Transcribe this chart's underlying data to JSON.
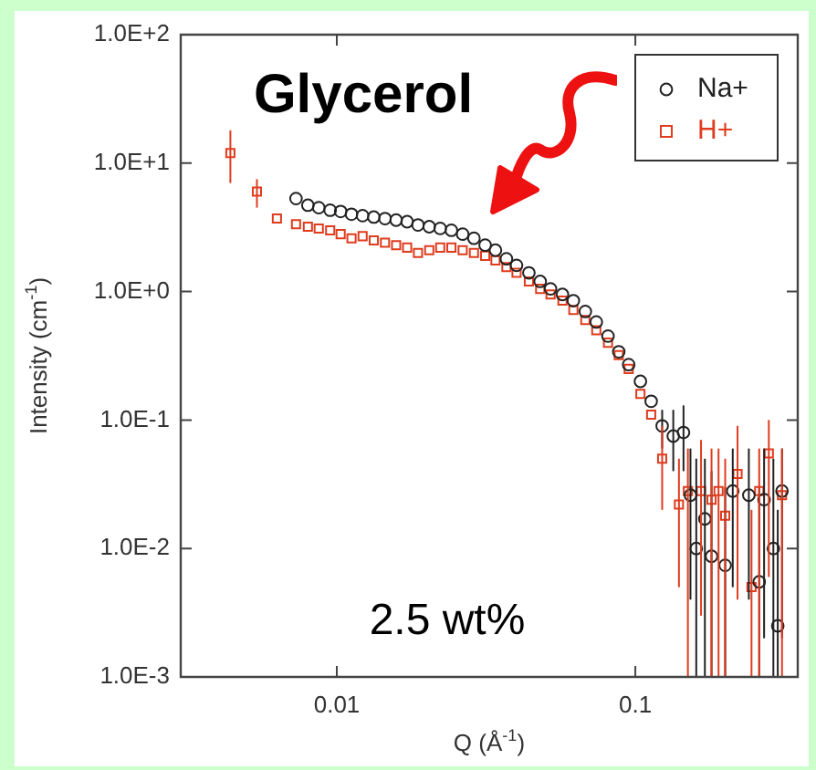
{
  "chart_data": {
    "type": "scatter",
    "xlabel": "Q (Å$^{-1}$)",
    "ylabel": "Intensity (cm$^{-1}$)",
    "annotations": [
      "Glycerol",
      "2.5 wt%"
    ],
    "log": "xy",
    "grid": false,
    "legend": "top right",
    "xlim": [
      0.003,
      0.35
    ],
    "xticks": [
      0.01,
      0.1
    ],
    "ylim": [
      0.001,
      100
    ],
    "yticks": [
      {
        "value": 0.001,
        "label": "1.0E-3"
      },
      {
        "value": 0.01,
        "label": "1.0E-2"
      },
      {
        "value": 0.1,
        "label": "1.0E-1"
      },
      {
        "value": 1,
        "label": "1.0E+0"
      },
      {
        "value": 10,
        "label": "1.0E+1"
      },
      {
        "value": 100,
        "label": "1.0E+2"
      }
    ],
    "series": [
      {
        "name": "Na+",
        "color": "#222222",
        "marker": "circle",
        "x": [
          0.0073,
          0.008,
          0.0087,
          0.0095,
          0.0103,
          0.0112,
          0.0122,
          0.0133,
          0.0145,
          0.0158,
          0.0172,
          0.0187,
          0.0204,
          0.0222,
          0.0242,
          0.0264,
          0.0288,
          0.0314,
          0.034,
          0.037,
          0.04,
          0.044,
          0.048,
          0.052,
          0.057,
          0.062,
          0.068,
          0.074,
          0.081,
          0.088,
          0.095,
          0.104,
          0.113,
          0.123,
          0.134,
          0.145,
          0.153,
          0.16,
          0.171,
          0.18,
          0.2,
          0.212,
          0.24,
          0.26,
          0.27,
          0.29,
          0.3,
          0.31
        ],
        "values": [
          5.3,
          4.7,
          4.5,
          4.3,
          4.2,
          4.0,
          3.9,
          3.8,
          3.7,
          3.6,
          3.5,
          3.3,
          3.2,
          3.1,
          3.0,
          2.8,
          2.6,
          2.3,
          2.1,
          1.8,
          1.6,
          1.4,
          1.2,
          1.05,
          0.95,
          0.85,
          0.7,
          0.58,
          0.45,
          0.34,
          0.27,
          0.2,
          0.14,
          0.09,
          0.075,
          0.08,
          0.026,
          0.01,
          0.017,
          0.0087,
          0.0074,
          0.028,
          0.026,
          0.0055,
          0.024,
          0.01,
          0.0025,
          0.028
        ],
        "errors": [
          null,
          null,
          null,
          null,
          null,
          null,
          null,
          null,
          null,
          null,
          null,
          null,
          null,
          null,
          null,
          null,
          null,
          null,
          null,
          null,
          null,
          null,
          null,
          null,
          null,
          null,
          null,
          null,
          null,
          null,
          null,
          null,
          null,
          [
            0.06,
            0.12
          ],
          [
            0.04,
            0.12
          ],
          [
            0.04,
            0.13
          ],
          [
            0.004,
            0.06
          ],
          [
            0.001,
            0.05
          ],
          [
            0.001,
            0.05
          ],
          [
            0.001,
            0.04
          ],
          [
            0.001,
            0.03
          ],
          [
            0.005,
            0.06
          ],
          [
            0.004,
            0.06
          ],
          [
            0.001,
            0.03
          ],
          [
            0.002,
            0.06
          ],
          [
            0.001,
            0.05
          ],
          [
            0.001,
            0.02
          ],
          [
            0.002,
            0.06
          ]
        ]
      },
      {
        "name": "H+",
        "color": "#e03c1e",
        "marker": "square",
        "x": [
          0.0044,
          0.0054,
          0.0063,
          0.0073,
          0.008,
          0.0087,
          0.0095,
          0.0103,
          0.0112,
          0.0122,
          0.0133,
          0.0145,
          0.0158,
          0.0172,
          0.0187,
          0.0204,
          0.0222,
          0.0242,
          0.0264,
          0.0288,
          0.0314,
          0.034,
          0.037,
          0.04,
          0.044,
          0.048,
          0.052,
          0.057,
          0.062,
          0.068,
          0.074,
          0.081,
          0.088,
          0.095,
          0.104,
          0.113,
          0.123,
          0.14,
          0.15,
          0.166,
          0.18,
          0.19,
          0.2,
          0.22,
          0.245,
          0.26,
          0.28,
          0.31
        ],
        "values": [
          12,
          6.0,
          3.7,
          3.35,
          3.2,
          3.1,
          3.0,
          2.8,
          2.6,
          2.7,
          2.5,
          2.4,
          2.3,
          2.2,
          2.0,
          2.1,
          2.2,
          2.2,
          2.1,
          2.0,
          1.9,
          1.75,
          1.55,
          1.4,
          1.2,
          1.05,
          0.95,
          0.85,
          0.72,
          0.6,
          0.5,
          0.4,
          0.32,
          0.25,
          0.16,
          0.11,
          0.05,
          0.022,
          0.028,
          0.028,
          0.024,
          0.028,
          0.018,
          0.038,
          0.005,
          0.028,
          0.055,
          0.026
        ],
        "errors": [
          [
            7,
            18
          ],
          [
            4.5,
            7.5
          ],
          null,
          null,
          null,
          null,
          null,
          null,
          null,
          null,
          null,
          null,
          null,
          null,
          null,
          null,
          null,
          null,
          null,
          null,
          null,
          null,
          null,
          null,
          null,
          null,
          null,
          null,
          null,
          null,
          null,
          null,
          null,
          null,
          null,
          null,
          [
            0.02,
            0.09
          ],
          [
            0.005,
            0.05
          ],
          [
            0.001,
            0.06
          ],
          [
            0.003,
            0.07
          ],
          [
            0.001,
            0.06
          ],
          [
            0.001,
            0.06
          ],
          [
            0.001,
            0.05
          ],
          [
            0.004,
            0.09
          ],
          [
            0.001,
            0.02
          ],
          [
            0.001,
            0.06
          ],
          [
            0.006,
            0.1
          ],
          [
            0.001,
            0.06
          ]
        ]
      }
    ]
  }
}
